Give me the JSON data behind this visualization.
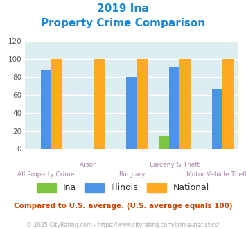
{
  "title_line1": "2019 Ina",
  "title_line2": "Property Crime Comparison",
  "categories": [
    "All Property Crime",
    "Arson",
    "Burglary",
    "Larceny & Theft",
    "Motor Vehicle Theft"
  ],
  "cat_labels_row1": [
    "",
    "Arson",
    "",
    "Larceny & Theft",
    ""
  ],
  "cat_labels_row2": [
    "All Property Crime",
    "",
    "Burglary",
    "",
    "Motor Vehicle Theft"
  ],
  "ina_values": [
    0,
    0,
    0,
    14,
    0
  ],
  "illinois_values": [
    88,
    0,
    80,
    92,
    67
  ],
  "national_values": [
    100,
    100,
    100,
    100,
    100
  ],
  "ina_color": "#7dc241",
  "illinois_color": "#4d94e8",
  "national_color": "#ffaa22",
  "bg_color": "#ddeef0",
  "title_color": "#1a88d8",
  "xlabel_color": "#aa88aa",
  "ylabel_max": 120,
  "yticks": [
    0,
    20,
    40,
    60,
    80,
    100,
    120
  ],
  "legend_labels": [
    "Ina",
    "Illinois",
    "National"
  ],
  "note_text": "Compared to U.S. average. (U.S. average equals 100)",
  "note_color": "#cc4400",
  "footer_text": "© 2025 CityRating.com - https://www.cityrating.com/crime-statistics/",
  "footer_color": "#aaaaaa",
  "grid_color": "#ffffff"
}
